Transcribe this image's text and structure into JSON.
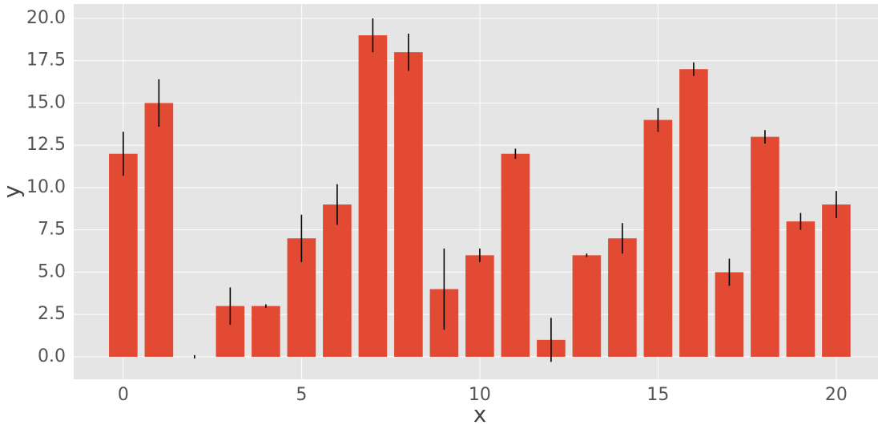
{
  "chart_data": {
    "type": "bar",
    "x_label": "x",
    "y_label": "y",
    "x": [
      0,
      1,
      2,
      3,
      4,
      5,
      6,
      7,
      8,
      9,
      10,
      11,
      12,
      13,
      14,
      15,
      16,
      17,
      18,
      19,
      20
    ],
    "values": [
      12,
      15,
      0,
      3,
      3,
      7,
      9,
      19,
      18,
      4,
      6,
      12,
      1,
      6,
      7,
      14,
      17,
      5,
      13,
      8,
      9
    ],
    "errors": [
      1.3,
      1.4,
      0.1,
      1.1,
      0.1,
      1.4,
      1.2,
      1.0,
      1.1,
      2.4,
      0.4,
      0.3,
      1.3,
      0.1,
      0.9,
      0.7,
      0.4,
      0.8,
      0.4,
      0.5,
      0.8
    ],
    "color": "#e24a33",
    "error_color": "#000000",
    "bar_width": 0.8,
    "xlim": [
      -1.39,
      21.17
    ],
    "ylim": [
      -1.33,
      20.85
    ],
    "xticks": [
      0,
      5,
      10,
      15,
      20
    ],
    "yticks": [
      {
        "value": 0,
        "label": "0.0"
      },
      {
        "value": 2.5,
        "label": "2.5"
      },
      {
        "value": 5,
        "label": "5.0"
      },
      {
        "value": 7.5,
        "label": "7.5"
      },
      {
        "value": 10,
        "label": "10.0"
      },
      {
        "value": 12.5,
        "label": "12.5"
      },
      {
        "value": 15,
        "label": "15.0"
      },
      {
        "value": 17.5,
        "label": "17.5"
      },
      {
        "value": 20,
        "label": "20.0"
      }
    ],
    "grid": true
  }
}
